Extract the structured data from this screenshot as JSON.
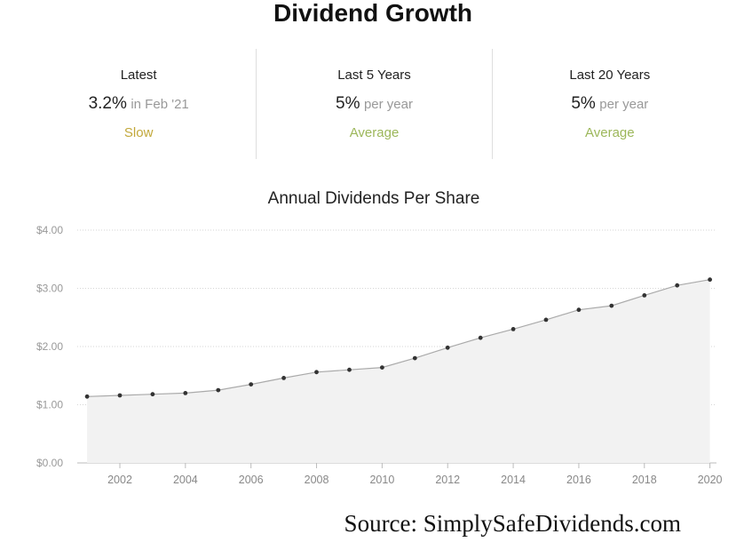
{
  "header": {
    "title": "Dividend Growth"
  },
  "stats": [
    {
      "label": "Latest",
      "value": "3.2%",
      "suffix": "in Feb '21",
      "rating": "Slow",
      "rating_color": "#c2a83a"
    },
    {
      "label": "Last 5 Years",
      "value": "5%",
      "suffix": "per year",
      "rating": "Average",
      "rating_color": "#9cb75a"
    },
    {
      "label": "Last 20 Years",
      "value": "5%",
      "suffix": "per year",
      "rating": "Average",
      "rating_color": "#9cb75a"
    }
  ],
  "chart_data": {
    "type": "area",
    "title": "Annual Dividends Per Share",
    "xlabel": "",
    "ylabel": "",
    "x": [
      2001,
      2002,
      2003,
      2004,
      2005,
      2006,
      2007,
      2008,
      2009,
      2010,
      2011,
      2012,
      2013,
      2014,
      2015,
      2016,
      2017,
      2018,
      2019,
      2020
    ],
    "series": [
      {
        "values": [
          1.14,
          1.16,
          1.18,
          1.2,
          1.25,
          1.35,
          1.46,
          1.56,
          1.6,
          1.64,
          1.8,
          1.98,
          2.15,
          2.3,
          2.46,
          2.63,
          2.7,
          2.88,
          3.05,
          3.15
        ]
      }
    ],
    "xticks": [
      "2002",
      "2004",
      "2006",
      "2008",
      "2010",
      "2012",
      "2014",
      "2016",
      "2018",
      "2020"
    ],
    "yticks": [
      "$0.00",
      "$1.00",
      "$2.00",
      "$3.00",
      "$4.00"
    ],
    "xlim": [
      2000.7,
      2020.2
    ],
    "ylim": [
      0,
      4
    ],
    "grid": true,
    "line_color": "#aaaaaa",
    "fill_color": "#f2f2f2",
    "point_color": "#333333"
  },
  "footer": {
    "source": "Source: SimplySafeDividends.com"
  }
}
